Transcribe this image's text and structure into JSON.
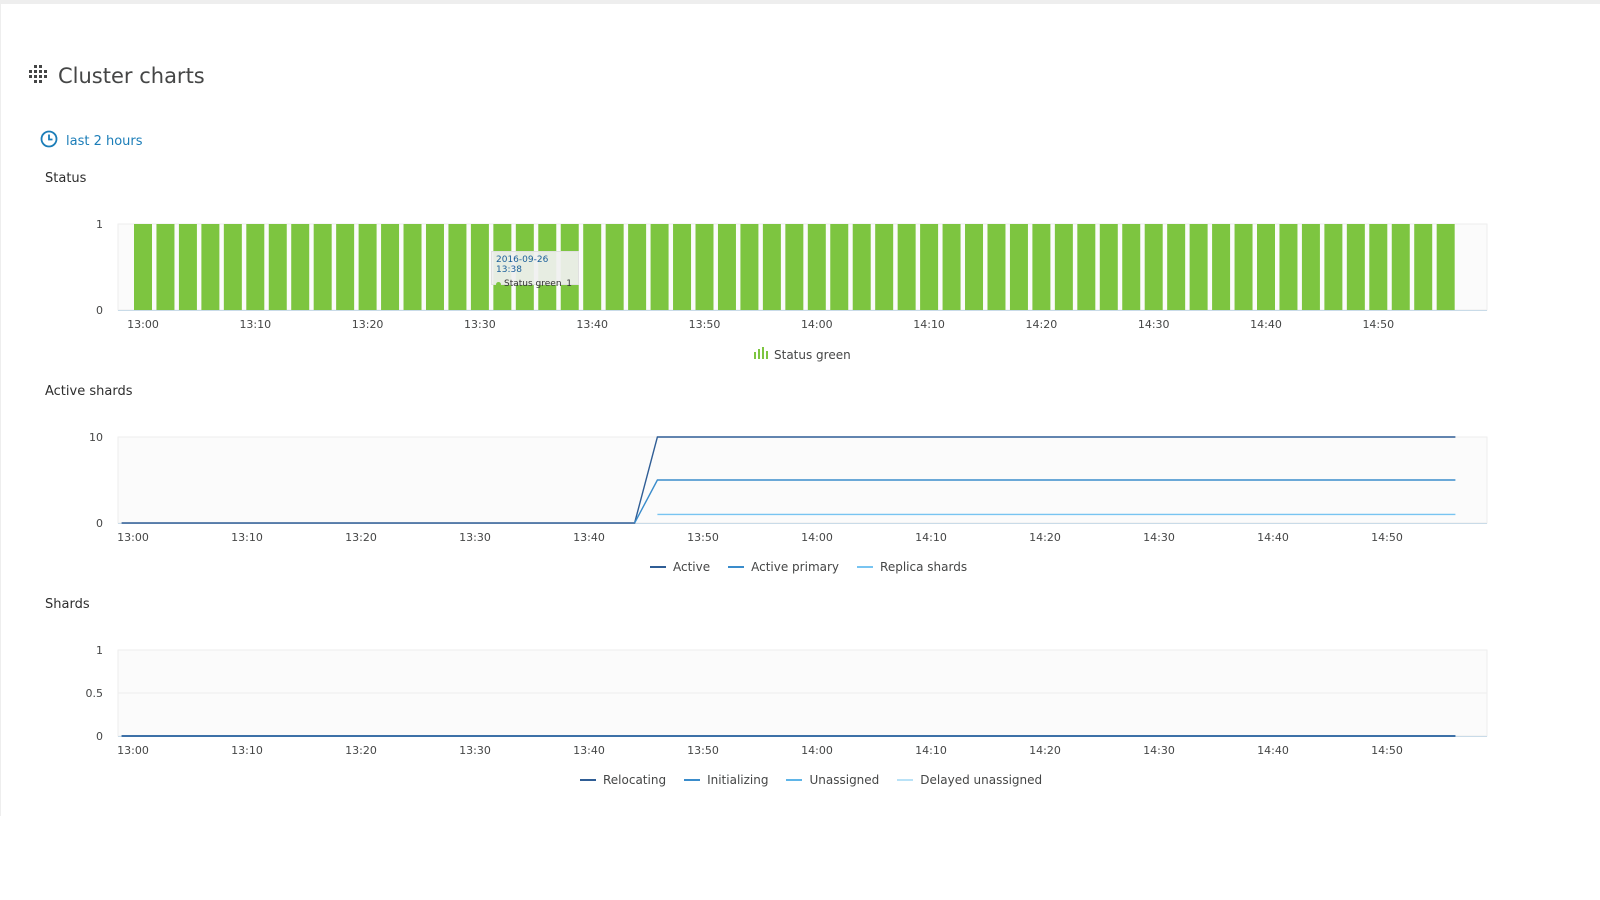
{
  "page": {
    "title": "Cluster charts",
    "title_icon": "cluster-icon",
    "timeframe_label": "last 2 hours",
    "timeframe_icon": "clock-icon"
  },
  "colors": {
    "status_green": "#7dc540",
    "active": "#2f5d95",
    "active_primary": "#3a8ccb",
    "replica": "#78c4f1",
    "relocating": "#2f5d95",
    "initializing": "#3a8ccb",
    "unassigned": "#5fb5e8",
    "delayed_unassigned": "#b9e2f7",
    "link": "#1b7db8"
  },
  "tooltip": {
    "date": "2016-09-26 13:38",
    "series": "Status green",
    "value": "1"
  },
  "chart_data": [
    {
      "type": "bar",
      "title": "Status",
      "x_tick_labels": [
        "13:00",
        "13:10",
        "13:20",
        "13:30",
        "13:40",
        "13:50",
        "14:00",
        "14:10",
        "14:20",
        "14:30",
        "14:40",
        "14:50"
      ],
      "y_tick_labels": [
        "1",
        "0"
      ],
      "ylim": [
        0,
        1
      ],
      "x_start_minutes_after_1300": 0,
      "bar_interval_minutes": 2,
      "series": [
        {
          "name": "Status green",
          "values": [
            1,
            1,
            1,
            1,
            1,
            1,
            1,
            1,
            1,
            1,
            1,
            1,
            1,
            1,
            1,
            1,
            1,
            1,
            1,
            1,
            1,
            1,
            1,
            1,
            1,
            1,
            1,
            1,
            1,
            1,
            1,
            1,
            1,
            1,
            1,
            1,
            1,
            1,
            1,
            1,
            1,
            1,
            1,
            1,
            1,
            1,
            1,
            1,
            1,
            1,
            1,
            1,
            1,
            1,
            1,
            1,
            1,
            1,
            1
          ]
        }
      ],
      "legend": [
        "Status green"
      ]
    },
    {
      "type": "line",
      "title": "Active shards",
      "x_tick_labels": [
        "13:00",
        "13:10",
        "13:20",
        "13:30",
        "13:40",
        "13:50",
        "14:00",
        "14:10",
        "14:20",
        "14:30",
        "14:40",
        "14:50"
      ],
      "y_tick_labels": [
        "10",
        "0"
      ],
      "ylim": [
        0,
        10
      ],
      "series": [
        {
          "name": "Active",
          "points": [
            [
              "12:59",
              0
            ],
            [
              "13:44",
              0
            ],
            [
              "13:46",
              10
            ],
            [
              "14:56",
              10
            ]
          ]
        },
        {
          "name": "Active primary",
          "points": [
            [
              "13:44",
              0
            ],
            [
              "13:46",
              5
            ],
            [
              "14:56",
              5
            ]
          ]
        },
        {
          "name": "Replica shards",
          "points": [
            [
              "13:46",
              1
            ],
            [
              "14:56",
              1
            ]
          ]
        }
      ],
      "legend": [
        "Active",
        "Active primary",
        "Replica shards"
      ]
    },
    {
      "type": "line",
      "title": "Shards",
      "x_tick_labels": [
        "13:00",
        "13:10",
        "13:20",
        "13:30",
        "13:40",
        "13:50",
        "14:00",
        "14:10",
        "14:20",
        "14:30",
        "14:40",
        "14:50"
      ],
      "y_tick_labels": [
        "1",
        "0.5",
        "0"
      ],
      "ylim": [
        0,
        1
      ],
      "series": [
        {
          "name": "Relocating",
          "points": [
            [
              "12:59",
              0
            ],
            [
              "14:56",
              0
            ]
          ]
        },
        {
          "name": "Initializing",
          "points": [
            [
              "12:59",
              0
            ],
            [
              "14:56",
              0
            ]
          ]
        },
        {
          "name": "Unassigned",
          "points": [
            [
              "12:59",
              0
            ],
            [
              "14:56",
              0
            ]
          ]
        },
        {
          "name": "Delayed unassigned",
          "points": [
            [
              "12:59",
              0
            ],
            [
              "14:56",
              0
            ]
          ]
        }
      ],
      "legend": [
        "Relocating",
        "Initializing",
        "Unassigned",
        "Delayed unassigned"
      ]
    }
  ]
}
